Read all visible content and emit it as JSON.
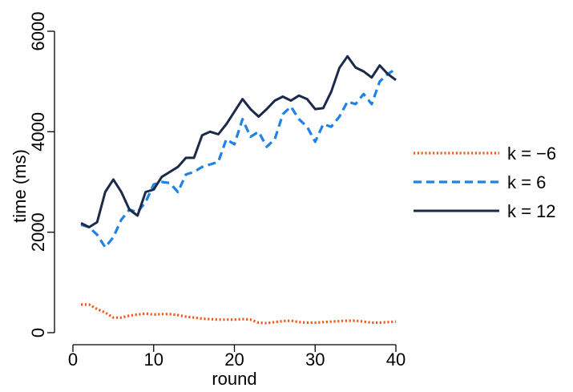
{
  "chart_data": {
    "type": "line",
    "title": "",
    "xlabel": "round",
    "ylabel": "time (ms)",
    "xlim": [
      0,
      40
    ],
    "ylim": [
      0,
      6000
    ],
    "xticks": [
      0,
      10,
      20,
      30,
      40
    ],
    "yticks": [
      0,
      2000,
      4000,
      6000
    ],
    "xtick_labels": [
      "0",
      "10",
      "20",
      "30",
      "40"
    ],
    "ytick_labels": [
      "0",
      "2000",
      "4000",
      "6000"
    ],
    "grid": false,
    "legend_position": "right",
    "series": [
      {
        "name": "k = −6",
        "color": "#f05a1e",
        "style": "dotted",
        "x": [
          1,
          2,
          3,
          4,
          5,
          6,
          7,
          8,
          9,
          10,
          11,
          12,
          13,
          14,
          15,
          16,
          17,
          18,
          19,
          20,
          21,
          22,
          23,
          24,
          25,
          26,
          27,
          28,
          29,
          30,
          31,
          32,
          33,
          34,
          35,
          36,
          37,
          38,
          39,
          40
        ],
        "values": [
          560,
          560,
          470,
          400,
          300,
          300,
          340,
          360,
          380,
          360,
          370,
          370,
          350,
          320,
          300,
          280,
          270,
          260,
          260,
          260,
          270,
          260,
          200,
          190,
          210,
          230,
          240,
          210,
          200,
          200,
          210,
          220,
          230,
          240,
          240,
          220,
          200,
          200,
          210,
          220
        ]
      },
      {
        "name": "k = 6",
        "color": "#1e82e6",
        "style": "dashed",
        "x": [
          1,
          2,
          3,
          4,
          5,
          6,
          7,
          8,
          9,
          10,
          11,
          12,
          13,
          14,
          15,
          16,
          17,
          18,
          19,
          20,
          21,
          22,
          23,
          24,
          25,
          26,
          27,
          28,
          29,
          30,
          31,
          32,
          33,
          34,
          35,
          36,
          37,
          38,
          39,
          40
        ],
        "values": [
          2150,
          2100,
          1950,
          1700,
          1900,
          2250,
          2450,
          2400,
          2600,
          2950,
          3000,
          2980,
          2800,
          3150,
          3200,
          3300,
          3350,
          3400,
          3850,
          3750,
          4250,
          3900,
          4000,
          3700,
          3850,
          4350,
          4500,
          4250,
          4100,
          3800,
          4150,
          4100,
          4300,
          4600,
          4550,
          4750,
          4550,
          5000,
          5150,
          5250
        ]
      },
      {
        "name": "k = 12",
        "color": "#1b2a4a",
        "style": "solid",
        "x": [
          1,
          2,
          3,
          4,
          5,
          6,
          7,
          8,
          9,
          10,
          11,
          12,
          13,
          14,
          15,
          16,
          17,
          18,
          19,
          20,
          21,
          22,
          23,
          24,
          25,
          26,
          27,
          28,
          29,
          30,
          31,
          32,
          33,
          34,
          35,
          36,
          37,
          38,
          39,
          40
        ],
        "values": [
          2180,
          2100,
          2200,
          2800,
          3050,
          2800,
          2450,
          2330,
          2800,
          2850,
          3100,
          3200,
          3300,
          3480,
          3480,
          3930,
          4000,
          3950,
          4150,
          4400,
          4650,
          4450,
          4300,
          4450,
          4620,
          4700,
          4620,
          4720,
          4650,
          4450,
          4470,
          4800,
          5270,
          5500,
          5280,
          5200,
          5080,
          5320,
          5150,
          5030
        ]
      }
    ]
  }
}
